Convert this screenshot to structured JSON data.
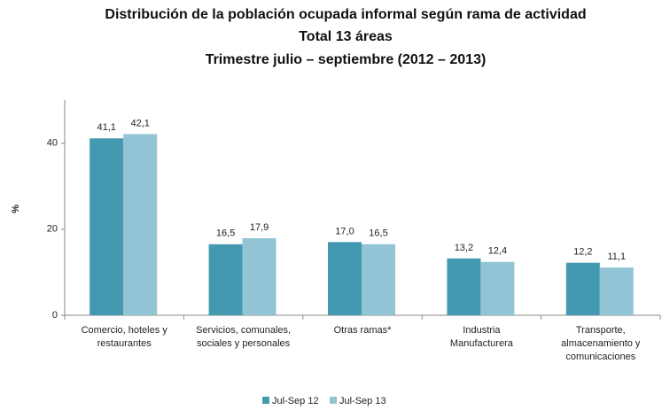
{
  "chart_data": {
    "type": "bar",
    "title": [
      "Distribución de la población ocupada informal según rama de actividad",
      "Total 13 áreas",
      "Trimestre julio – septiembre (2012 – 2013)"
    ],
    "ylabel": "%",
    "categories": [
      [
        "Comercio, hoteles y",
        "restaurantes"
      ],
      [
        "Servicios, comunales,",
        "sociales y personales"
      ],
      [
        "Otras ramas*"
      ],
      [
        "Industria",
        "Manufacturera"
      ],
      [
        "Transporte,",
        "almacenamiento y",
        "comunicaciones"
      ]
    ],
    "series": [
      {
        "name": "Jul-Sep 12",
        "color": "#4299b0",
        "values": [
          41.1,
          16.5,
          17.0,
          13.2,
          12.2
        ],
        "value_labels": [
          "41,1",
          "16,5",
          "17,0",
          "13,2",
          "12,2"
        ]
      },
      {
        "name": "Jul-Sep 13",
        "color": "#93c4d6",
        "values": [
          42.1,
          17.9,
          16.5,
          12.4,
          11.1
        ],
        "value_labels": [
          "42,1",
          "17,9",
          "16,5",
          "12,4",
          "11,1"
        ]
      }
    ],
    "ylim": [
      0,
      50
    ],
    "yticks": [
      0,
      20,
      40
    ],
    "grid": false,
    "legend": "bottom"
  }
}
